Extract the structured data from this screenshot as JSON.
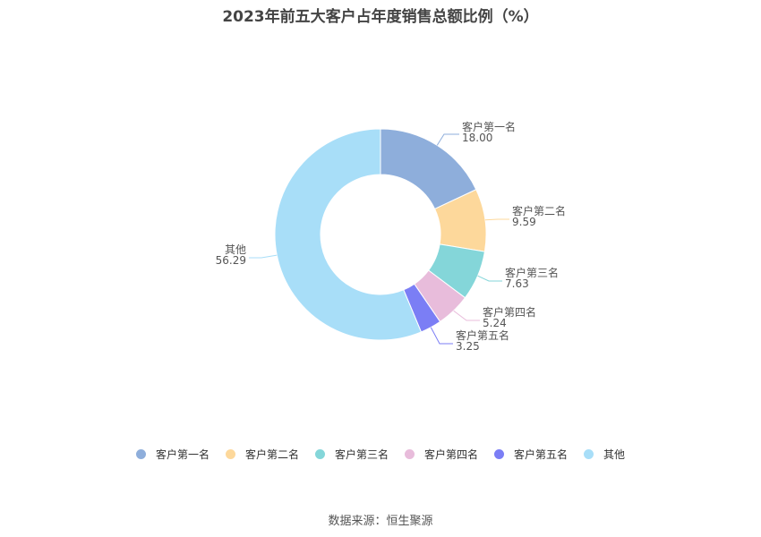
{
  "chart_data": {
    "type": "pie",
    "title": "2023年前五大客户占年度销售总额比例（%）",
    "categories": [
      "客户第一名",
      "客户第二名",
      "客户第三名",
      "客户第四名",
      "客户第五名",
      "其他"
    ],
    "values": [
      18.0,
      9.59,
      7.63,
      5.24,
      3.25,
      56.29
    ],
    "value_labels": [
      "18.00",
      "9.59",
      "7.63",
      "5.24",
      "3.25",
      "56.29"
    ],
    "colors": [
      "#8eaedb",
      "#fdd89b",
      "#84d6d9",
      "#e8bcdb",
      "#7b7ef5",
      "#a8def8"
    ],
    "donut": true,
    "legend": "bottom"
  },
  "source": "数据来源：恒生聚源"
}
